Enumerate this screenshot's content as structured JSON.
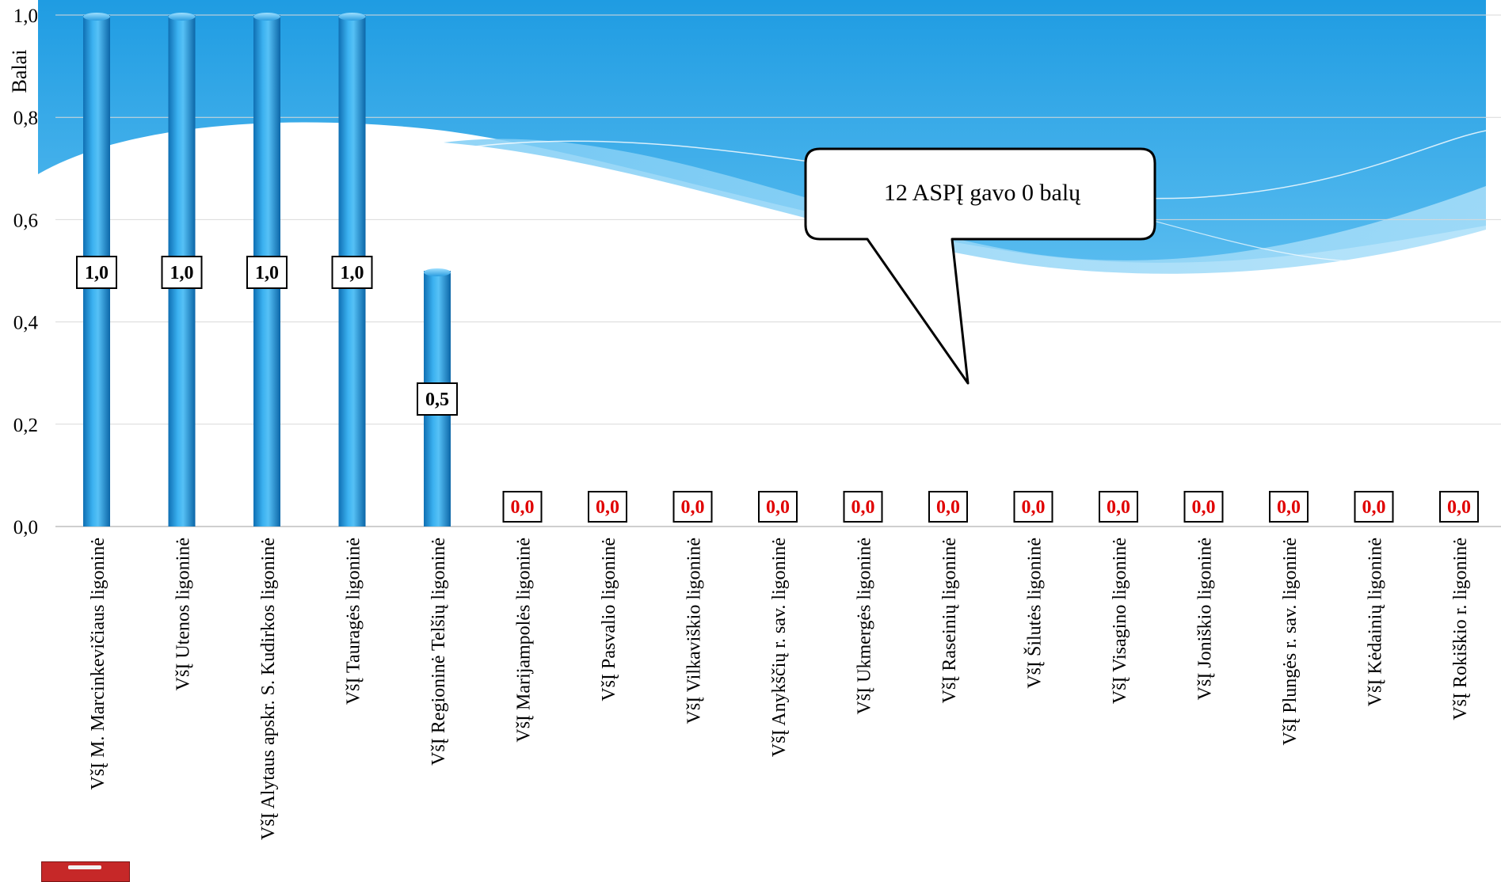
{
  "chart_data": {
    "type": "bar",
    "ylabel": "Balai",
    "ylim": [
      0,
      1.0
    ],
    "yticks": [
      "0,0",
      "0,2",
      "0,4",
      "0,6",
      "0,8",
      "1,0"
    ],
    "categories": [
      "VšĮ M. Marcinkevičiaus ligoninė",
      "VšĮ Utenos ligoninė",
      "VšĮ Alytaus apskr. S. Kudirkos ligoninė",
      "VšĮ Tauragės ligoninė",
      "VšĮ Regioninė Telšių  ligoninė",
      "VšĮ Marijampolės ligoninė",
      "VšĮ Pasvalio ligoninė",
      "VšĮ Vilkaviškio ligoninė",
      "VšĮ Anykščių r. sav. ligoninė",
      "VšĮ Ukmergės ligoninė",
      "VšĮ Raseinių ligoninė",
      "VšĮ Šilutės ligoninė",
      "VšĮ Visagino ligoninė",
      "VšĮ Joniškio ligoninė",
      "VšĮ Plungės r. sav. ligoninė",
      "VšĮ Kėdainių ligoninė",
      "VšĮ Rokiškio r. ligoninė"
    ],
    "values": [
      1.0,
      1.0,
      1.0,
      1.0,
      0.5,
      0,
      0,
      0,
      0,
      0,
      0,
      0,
      0,
      0,
      0,
      0,
      0
    ],
    "data_labels": [
      "1,0",
      "1,0",
      "1,0",
      "1,0",
      "0,5",
      "0,0",
      "0,0",
      "0,0",
      "0,0",
      "0,0",
      "0,0",
      "0,0",
      "0,0",
      "0,0",
      "0,0",
      "0,0",
      "0,0"
    ],
    "annotation": "12 ASPĮ gavo 0 balų",
    "grid": true,
    "colors": {
      "bar": "#2f9fe0",
      "zero_label": "#e00000",
      "label": "#000000",
      "background_top": "#29a3e3",
      "gridline": "#d9d9d9"
    }
  }
}
